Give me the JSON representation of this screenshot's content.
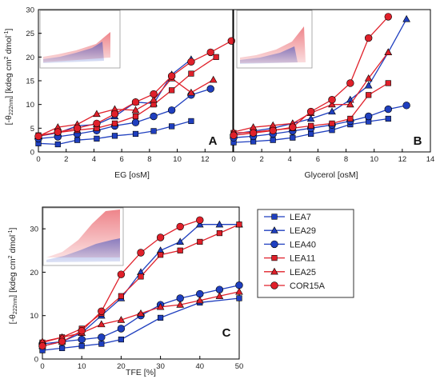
{
  "colors": {
    "LEA7": "#1f3fbf",
    "LEA29": "#1f3fbf",
    "LEA40": "#1f3fbf",
    "LEA11": "#e0202a",
    "LEA25": "#e0202a",
    "COR15A": "#e0202a"
  },
  "ylabel": {
    "prefix": "[-θ",
    "sub": "222nm",
    "mid": "] [kdeg cm",
    "sup1": "2",
    "mid2": " dmol",
    "sup2": "-1",
    "end": "]"
  },
  "legend": [
    {
      "name": "LEA7",
      "marker": "square",
      "color": "#1f3fbf"
    },
    {
      "name": "LEA29",
      "marker": "triangle",
      "color": "#1f3fbf"
    },
    {
      "name": "LEA40",
      "marker": "circle",
      "color": "#1f3fbf"
    },
    {
      "name": "LEA11",
      "marker": "square",
      "color": "#e0202a"
    },
    {
      "name": "LEA25",
      "marker": "triangle",
      "color": "#e0202a"
    },
    {
      "name": "COR15A",
      "marker": "circle",
      "color": "#e0202a"
    }
  ],
  "chart_data": [
    {
      "type": "line",
      "panel_label": "A",
      "xlabel": "EG [osM]",
      "xlim": [
        0,
        14
      ],
      "ylim": [
        0,
        30
      ],
      "xticks": [
        0,
        2,
        4,
        6,
        8,
        10,
        12
      ],
      "yticks": [
        0,
        5,
        10,
        15,
        20,
        25,
        30
      ],
      "series": [
        {
          "name": "LEA7",
          "marker": "square",
          "x": [
            0,
            1.4,
            2.8,
            4.2,
            5.5,
            7,
            8.3,
            9.6,
            11
          ],
          "y": [
            1.8,
            1.6,
            2.5,
            2.8,
            3.4,
            3.8,
            4.4,
            5.4,
            6.5
          ]
        },
        {
          "name": "LEA29",
          "marker": "triangle",
          "x": [
            0,
            1.4,
            2.8,
            4.2,
            5.5,
            7,
            8.3,
            9.6,
            11
          ],
          "y": [
            3.3,
            4.0,
            5.5,
            5.8,
            7.5,
            10.5,
            10.2,
            16.3,
            19.5
          ]
        },
        {
          "name": "LEA40",
          "marker": "circle",
          "x": [
            0,
            1.4,
            2.8,
            4.2,
            5.5,
            7,
            8.3,
            9.6,
            11,
            12.4
          ],
          "y": [
            2.8,
            3.2,
            3.8,
            4.5,
            5.5,
            6.2,
            7.5,
            8.8,
            12.0,
            13.3
          ]
        },
        {
          "name": "LEA11",
          "marker": "square",
          "x": [
            0,
            1.4,
            2.8,
            4.2,
            5.5,
            7,
            8.3,
            9.6,
            11,
            12.8
          ],
          "y": [
            3.5,
            4.1,
            4.6,
            5.0,
            6.0,
            7.5,
            10.0,
            13.0,
            16.5,
            20.0
          ]
        },
        {
          "name": "LEA25",
          "marker": "triangle",
          "x": [
            0,
            1.4,
            2.8,
            4.2,
            5.5,
            7,
            8.3,
            9.6,
            11,
            12.6
          ],
          "y": [
            3.3,
            5.2,
            5.8,
            8.0,
            9.0,
            8.8,
            11.0,
            15.5,
            12.5,
            15.2
          ]
        },
        {
          "name": "COR15A",
          "marker": "circle",
          "x": [
            0,
            1.4,
            2.8,
            4.2,
            5.5,
            7,
            8.3,
            9.6,
            11,
            12.4,
            13.9
          ],
          "y": [
            3.3,
            4.2,
            5.0,
            6.0,
            8.0,
            10.5,
            12.2,
            16.0,
            19.0,
            21.0,
            23.4
          ]
        }
      ]
    },
    {
      "type": "line",
      "panel_label": "B",
      "xlabel": "Glycerol [osM]",
      "xlim": [
        0,
        14
      ],
      "ylim": [
        0,
        30
      ],
      "xticks": [
        0,
        2,
        4,
        6,
        8,
        10,
        12,
        14
      ],
      "yticks": [
        0,
        5,
        10,
        15,
        20,
        25,
        30
      ],
      "series": [
        {
          "name": "LEA7",
          "marker": "square",
          "x": [
            0,
            1.4,
            2.8,
            4.2,
            5.5,
            7,
            8.3,
            9.6,
            11
          ],
          "y": [
            2.0,
            2.2,
            2.5,
            3.0,
            3.8,
            4.6,
            5.8,
            6.4,
            7.0
          ]
        },
        {
          "name": "LEA29",
          "marker": "triangle",
          "x": [
            0,
            1.4,
            2.8,
            4.2,
            5.5,
            7,
            8.3,
            9.6,
            11,
            12.3
          ],
          "y": [
            3.8,
            4.4,
            5.0,
            6.0,
            7.0,
            8.5,
            11.0,
            14.0,
            21.0,
            28.0
          ]
        },
        {
          "name": "LEA40",
          "marker": "circle",
          "x": [
            0,
            1.4,
            2.8,
            4.2,
            5.5,
            7,
            8.3,
            9.6,
            11,
            12.3
          ],
          "y": [
            3.0,
            3.3,
            3.8,
            4.4,
            5.0,
            5.7,
            6.5,
            7.5,
            9.0,
            9.8
          ]
        },
        {
          "name": "LEA11",
          "marker": "square",
          "x": [
            0,
            1.4,
            2.8,
            4.2,
            5.5,
            7,
            8.3,
            9.6,
            11
          ],
          "y": [
            4.0,
            4.2,
            4.6,
            5.0,
            5.5,
            6.0,
            7.0,
            12.0,
            14.5
          ]
        },
        {
          "name": "LEA25",
          "marker": "triangle",
          "x": [
            0,
            1.4,
            2.8,
            4.2,
            5.5,
            7,
            8.3,
            9.6,
            11
          ],
          "y": [
            4.2,
            5.2,
            5.6,
            6.0,
            8.2,
            10.0,
            10.0,
            15.5,
            21.0
          ]
        },
        {
          "name": "COR15A",
          "marker": "circle",
          "x": [
            0,
            1.4,
            2.8,
            4.2,
            5.5,
            7,
            8.3,
            9.6,
            11
          ],
          "y": [
            3.5,
            4.0,
            4.5,
            5.2,
            8.5,
            11.0,
            14.5,
            24.0,
            28.5
          ]
        }
      ]
    },
    {
      "type": "line",
      "panel_label": "C",
      "xlabel": "TFE [%]",
      "xlim": [
        0,
        50
      ],
      "ylim": [
        0,
        35
      ],
      "xticks": [
        0,
        10,
        20,
        30,
        40,
        50
      ],
      "yticks": [
        0,
        10,
        20,
        30
      ],
      "series": [
        {
          "name": "LEA7",
          "marker": "square",
          "x": [
            0,
            5,
            10,
            15,
            20,
            30,
            40,
            50
          ],
          "y": [
            2.0,
            2.5,
            3.0,
            3.5,
            4.5,
            9.5,
            13.0,
            14.0
          ]
        },
        {
          "name": "LEA29",
          "marker": "triangle",
          "x": [
            0,
            5,
            10,
            15,
            20,
            25,
            30,
            35,
            40,
            45,
            50
          ],
          "y": [
            3.0,
            4.0,
            6.0,
            10.0,
            14.0,
            20.0,
            25.0,
            27.0,
            31.0,
            31.0,
            31.0
          ]
        },
        {
          "name": "LEA40",
          "marker": "circle",
          "x": [
            0,
            5,
            10,
            15,
            20,
            25,
            30,
            35,
            40,
            45,
            50
          ],
          "y": [
            3.5,
            4.0,
            4.5,
            5.0,
            7.0,
            10.0,
            12.5,
            14.0,
            15.0,
            16.0,
            17.0
          ]
        },
        {
          "name": "LEA11",
          "marker": "square",
          "x": [
            0,
            5,
            10,
            15,
            20,
            25,
            30,
            35,
            40,
            45,
            50
          ],
          "y": [
            3.8,
            5.0,
            7.0,
            10.5,
            14.5,
            19.0,
            24.0,
            25.0,
            27.0,
            29.0,
            31.0
          ]
        },
        {
          "name": "LEA25",
          "marker": "triangle",
          "x": [
            0,
            5,
            10,
            15,
            20,
            25,
            30,
            35,
            40,
            45,
            50
          ],
          "y": [
            4.0,
            5.0,
            6.0,
            8.0,
            9.0,
            10.5,
            12.0,
            12.5,
            13.5,
            14.5,
            15.5
          ]
        },
        {
          "name": "COR15A",
          "marker": "circle",
          "x": [
            0,
            5,
            10,
            15,
            20,
            25,
            30,
            35,
            40
          ],
          "y": [
            3.0,
            4.0,
            6.5,
            11.0,
            19.5,
            24.5,
            28.0,
            30.5,
            32.0
          ]
        }
      ]
    }
  ]
}
